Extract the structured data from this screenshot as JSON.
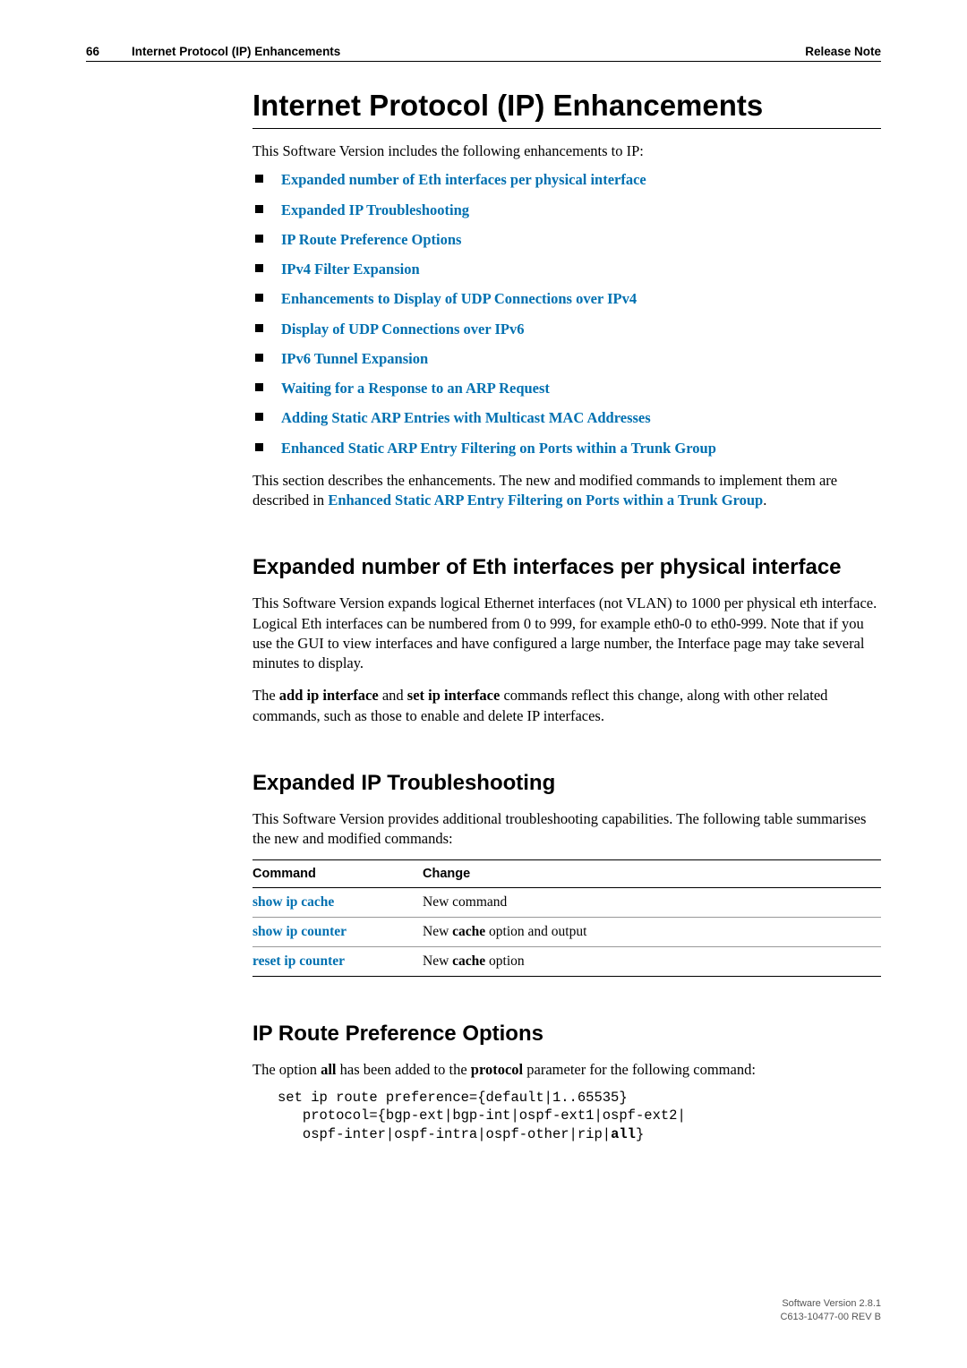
{
  "header": {
    "page_num": "66",
    "section": "Internet Protocol (IP) Enhancements",
    "right": "Release Note"
  },
  "title": "Internet Protocol (IP) Enhancements",
  "intro": "This Software Version includes the following enhancements to IP:",
  "toc": [
    "Expanded number of Eth interfaces per physical interface",
    "Expanded IP Troubleshooting",
    "IP Route Preference Options",
    "IPv4 Filter Expansion",
    "Enhancements to Display of UDP Connections over IPv4",
    "Display of UDP Connections over IPv6",
    "IPv6 Tunnel Expansion",
    "Waiting for a Response to an ARP Request",
    "Adding Static ARP Entries with Multicast MAC Addresses",
    "Enhanced Static ARP Entry Filtering on Ports within a Trunk Group"
  ],
  "post_toc": {
    "pre": "This section describes the enhancements. The new and modified commands to implement them are described in ",
    "link": "Enhanced Static ARP Entry Filtering on Ports within a Trunk Group",
    "post": "."
  },
  "sec1": {
    "title": "Expanded number of Eth interfaces per physical interface",
    "p1": "This Software Version expands logical Ethernet interfaces (not VLAN) to 1000 per physical eth interface. Logical Eth interfaces can be numbered from 0 to 999, for example eth0-0 to eth0-999. Note that if you use the GUI to view interfaces and have configured a large number, the Interface page may take several minutes to display.",
    "p2_pre": "The ",
    "p2_b1": "add ip interface",
    "p2_mid": " and ",
    "p2_b2": "set ip interface",
    "p2_post": " commands reflect this change, along with other related commands, such as those to enable and delete IP interfaces."
  },
  "sec2": {
    "title": "Expanded IP Troubleshooting",
    "p1": "This Software Version provides additional troubleshooting capabilities. The following table summarises the new and modified commands:",
    "table": {
      "headers": [
        "Command",
        "Change"
      ],
      "rows": [
        {
          "cmd": "show ip cache",
          "pre": "New command",
          "bold": "",
          "post": ""
        },
        {
          "cmd": "show ip counter",
          "pre": "New ",
          "bold": "cache",
          "post": " option and output"
        },
        {
          "cmd": "reset ip counter",
          "pre": "New ",
          "bold": "cache",
          "post": " option"
        }
      ]
    }
  },
  "sec3": {
    "title": "IP Route Preference Options",
    "p1_pre": "The option ",
    "p1_b1": "all",
    "p1_mid": " has been added to the ",
    "p1_b2": "protocol",
    "p1_post": " parameter for the following command:",
    "code_l1": "set ip route preference={default|1..65535}",
    "code_l2": "   protocol={bgp-ext|bgp-int|ospf-ext1|ospf-ext2|",
    "code_l3a": "   ospf-inter|ospf-intra|ospf-other|rip|",
    "code_l3b": "all",
    "code_l3c": "}"
  },
  "footer": {
    "line1": "Software Version 2.8.1",
    "line2": "C613-10477-00 REV B"
  },
  "colors": {
    "link": "#0070b0",
    "text": "#000000",
    "footer": "#555555"
  }
}
